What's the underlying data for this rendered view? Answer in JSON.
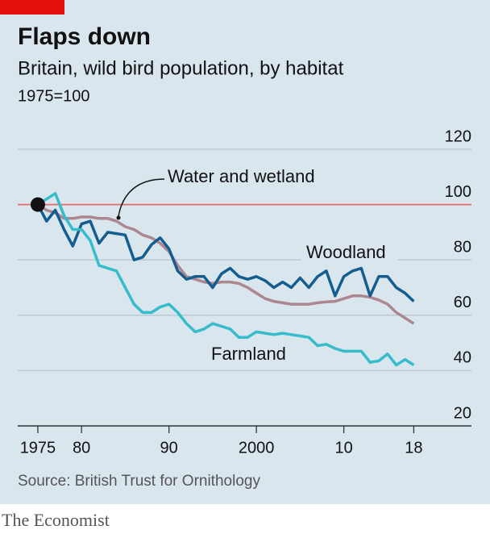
{
  "chart_data": {
    "type": "line",
    "title": "Flaps down",
    "subtitle": "Britain, wild bird population, by habitat",
    "unit_note": "1975=100",
    "source": "Source: British Trust for Ornithology",
    "brand": "The Economist",
    "x": [
      1975,
      1976,
      1977,
      1978,
      1979,
      1980,
      1981,
      1982,
      1983,
      1984,
      1985,
      1986,
      1987,
      1988,
      1989,
      1990,
      1991,
      1992,
      1993,
      1994,
      1995,
      1996,
      1997,
      1998,
      1999,
      2000,
      2001,
      2002,
      2003,
      2004,
      2005,
      2006,
      2007,
      2008,
      2009,
      2010,
      2011,
      2012,
      2013,
      2014,
      2015,
      2016,
      2017,
      2018
    ],
    "series": [
      {
        "name": "Water and wetland",
        "color": "#ad8790",
        "values": [
          100,
          98,
          97,
          95,
          95,
          95.5,
          95.5,
          95,
          95,
          94,
          92,
          91,
          89,
          88,
          86,
          83,
          78,
          74,
          73,
          72,
          71.5,
          72,
          72,
          71.5,
          70,
          68,
          66,
          65,
          64.5,
          64,
          64,
          64,
          64.5,
          64.8,
          65,
          66,
          67,
          67,
          66.5,
          65.5,
          64,
          61,
          59,
          57
        ]
      },
      {
        "name": "Woodland",
        "color": "#155d8f",
        "values": [
          100,
          94,
          98,
          91,
          85,
          93,
          94,
          86,
          90,
          89.5,
          89,
          80,
          81,
          85.5,
          88,
          84,
          76,
          73,
          74,
          74,
          70,
          75,
          77,
          74,
          73,
          74,
          72.5,
          70,
          72,
          70,
          73.5,
          70,
          74,
          76,
          67,
          74,
          76,
          77,
          67,
          74,
          74,
          70,
          68,
          65
        ]
      },
      {
        "name": "Farmland",
        "color": "#36bccb",
        "values": [
          100,
          102,
          104,
          96,
          91,
          91,
          87,
          78,
          77,
          76,
          70,
          64,
          61,
          61,
          63,
          64,
          61,
          57,
          54,
          55,
          57,
          56,
          55,
          52,
          52,
          54,
          53.5,
          53,
          53.5,
          53,
          52.5,
          52,
          49,
          49.5,
          48,
          47,
          47,
          47,
          43,
          43.5,
          46,
          42,
          44,
          42
        ]
      }
    ],
    "xlim": [
      1972.7,
      2024.6
    ],
    "xticks": [
      1975,
      {
        "value": 1980,
        "label": "80"
      },
      {
        "value": 1990,
        "label": "90"
      },
      2000,
      {
        "value": 2010,
        "label": "10"
      },
      {
        "value": 2018,
        "label": "18"
      }
    ],
    "ylim": [
      20,
      120
    ],
    "yticks": [
      20,
      40,
      60,
      80,
      100,
      120
    ],
    "reference_value": 100,
    "reference_color": "#e3696a",
    "grid": true
  }
}
